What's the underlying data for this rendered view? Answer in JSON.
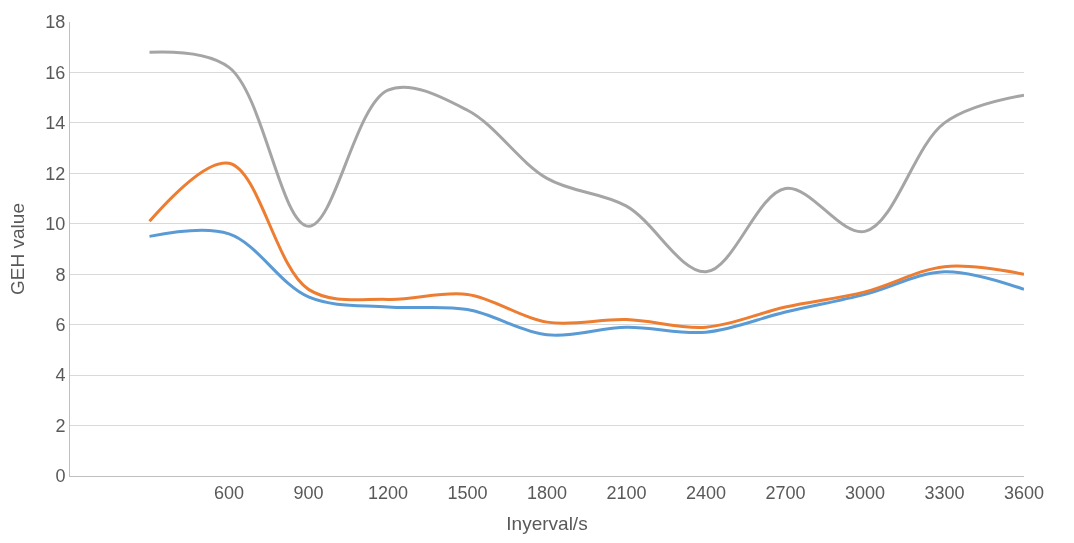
{
  "chart_data": {
    "type": "line",
    "xlabel": "Inyerval/s",
    "ylabel": "GEH value",
    "x": [
      300,
      600,
      900,
      1200,
      1500,
      1800,
      2100,
      2400,
      2700,
      3000,
      3300,
      3600
    ],
    "series": [
      {
        "color": "#5b9bd5",
        "values": [
          9.5,
          9.6,
          7.1,
          6.7,
          6.6,
          5.6,
          5.9,
          5.7,
          6.5,
          7.2,
          8.1,
          7.4
        ]
      },
      {
        "color": "#ed7d31",
        "values": [
          10.1,
          12.4,
          7.4,
          7.0,
          7.2,
          6.1,
          6.2,
          5.9,
          6.7,
          7.3,
          8.3,
          8.0
        ]
      },
      {
        "color": "#a5a5a5",
        "values": [
          16.8,
          16.2,
          9.9,
          15.3,
          14.5,
          11.8,
          10.7,
          8.1,
          11.4,
          9.7,
          14.0,
          15.1
        ]
      }
    ],
    "xlim": [
      0,
      3600
    ],
    "xticks": [
      600,
      900,
      1200,
      1500,
      1800,
      2100,
      2400,
      2700,
      3000,
      3300,
      3600
    ],
    "ylim": [
      0,
      18
    ],
    "yticks": [
      0,
      2,
      4,
      6,
      8,
      10,
      12,
      14,
      16,
      18
    ],
    "grid": "y",
    "marker": "none",
    "line_style": "solid"
  }
}
